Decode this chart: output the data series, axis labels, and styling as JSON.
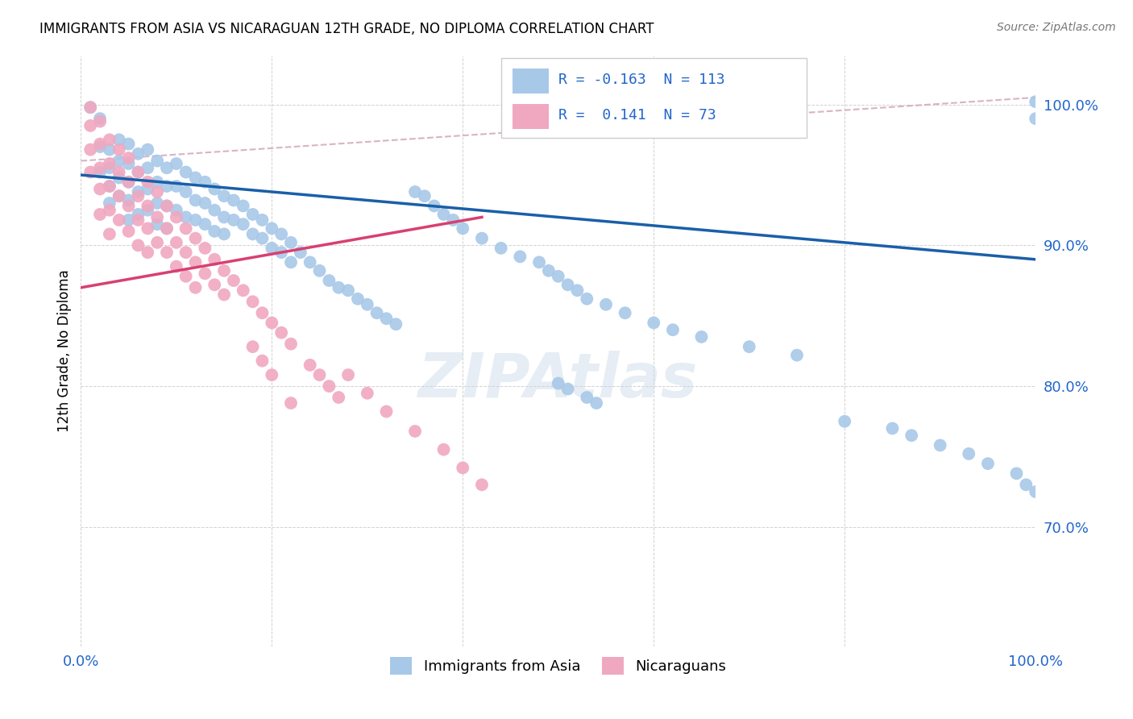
{
  "title": "IMMIGRANTS FROM ASIA VS NICARAGUAN 12TH GRADE, NO DIPLOMA CORRELATION CHART",
  "source": "Source: ZipAtlas.com",
  "ylabel": "12th Grade, No Diploma",
  "ytick_labels": [
    "70.0%",
    "80.0%",
    "90.0%",
    "100.0%"
  ],
  "ytick_values": [
    0.7,
    0.8,
    0.9,
    1.0
  ],
  "xlim": [
    0.0,
    1.0
  ],
  "ylim": [
    0.615,
    1.035
  ],
  "legend_blue_r": "-0.163",
  "legend_blue_n": "113",
  "legend_pink_r": "0.141",
  "legend_pink_n": "73",
  "legend_labels": [
    "Immigrants from Asia",
    "Nicaraguans"
  ],
  "blue_color": "#a8c8e8",
  "pink_color": "#f0a8c0",
  "blue_line_color": "#1a5fa8",
  "pink_line_color": "#d84070",
  "dashed_line_color": "#d0a0b8",
  "watermark": "ZIPAtlas",
  "blue_line_x0": 0.0,
  "blue_line_y0": 0.95,
  "blue_line_x1": 1.0,
  "blue_line_y1": 0.89,
  "pink_line_x0": 0.0,
  "pink_line_y0": 0.87,
  "pink_line_x1": 0.42,
  "pink_line_y1": 0.92,
  "dash_line_x0": 0.0,
  "dash_line_y0": 0.96,
  "dash_line_x1": 1.0,
  "dash_line_y1": 1.005,
  "blue_scatter_x": [
    0.01,
    0.02,
    0.02,
    0.02,
    0.03,
    0.03,
    0.03,
    0.03,
    0.04,
    0.04,
    0.04,
    0.04,
    0.05,
    0.05,
    0.05,
    0.05,
    0.05,
    0.06,
    0.06,
    0.06,
    0.06,
    0.07,
    0.07,
    0.07,
    0.07,
    0.08,
    0.08,
    0.08,
    0.08,
    0.09,
    0.09,
    0.09,
    0.09,
    0.1,
    0.1,
    0.1,
    0.11,
    0.11,
    0.11,
    0.12,
    0.12,
    0.12,
    0.13,
    0.13,
    0.13,
    0.14,
    0.14,
    0.14,
    0.15,
    0.15,
    0.15,
    0.16,
    0.16,
    0.17,
    0.17,
    0.18,
    0.18,
    0.19,
    0.19,
    0.2,
    0.2,
    0.21,
    0.21,
    0.22,
    0.22,
    0.23,
    0.24,
    0.25,
    0.26,
    0.27,
    0.28,
    0.29,
    0.3,
    0.31,
    0.32,
    0.33,
    0.35,
    0.36,
    0.37,
    0.38,
    0.39,
    0.4,
    0.42,
    0.44,
    0.46,
    0.48,
    0.49,
    0.5,
    0.51,
    0.52,
    0.53,
    0.55,
    0.57,
    0.6,
    0.62,
    0.65,
    0.7,
    0.75,
    0.8,
    0.85,
    0.87,
    0.9,
    0.93,
    0.95,
    0.98,
    0.99,
    1.0,
    1.0,
    1.0,
    0.5,
    0.51,
    0.53,
    0.54
  ],
  "blue_scatter_y": [
    0.998,
    0.99,
    0.97,
    0.952,
    0.968,
    0.955,
    0.942,
    0.93,
    0.975,
    0.96,
    0.948,
    0.935,
    0.972,
    0.958,
    0.945,
    0.932,
    0.918,
    0.965,
    0.952,
    0.938,
    0.922,
    0.968,
    0.955,
    0.94,
    0.925,
    0.96,
    0.945,
    0.93,
    0.915,
    0.955,
    0.942,
    0.928,
    0.912,
    0.958,
    0.942,
    0.925,
    0.952,
    0.938,
    0.92,
    0.948,
    0.932,
    0.918,
    0.945,
    0.93,
    0.915,
    0.94,
    0.925,
    0.91,
    0.935,
    0.92,
    0.908,
    0.932,
    0.918,
    0.928,
    0.915,
    0.922,
    0.908,
    0.918,
    0.905,
    0.912,
    0.898,
    0.908,
    0.895,
    0.902,
    0.888,
    0.895,
    0.888,
    0.882,
    0.875,
    0.87,
    0.868,
    0.862,
    0.858,
    0.852,
    0.848,
    0.844,
    0.938,
    0.935,
    0.928,
    0.922,
    0.918,
    0.912,
    0.905,
    0.898,
    0.892,
    0.888,
    0.882,
    0.878,
    0.872,
    0.868,
    0.862,
    0.858,
    0.852,
    0.845,
    0.84,
    0.835,
    0.828,
    0.822,
    0.775,
    0.77,
    0.765,
    0.758,
    0.752,
    0.745,
    0.738,
    0.73,
    0.725,
    0.99,
    1.002,
    0.802,
    0.798,
    0.792,
    0.788
  ],
  "pink_scatter_x": [
    0.01,
    0.01,
    0.01,
    0.01,
    0.02,
    0.02,
    0.02,
    0.02,
    0.02,
    0.03,
    0.03,
    0.03,
    0.03,
    0.03,
    0.04,
    0.04,
    0.04,
    0.04,
    0.05,
    0.05,
    0.05,
    0.05,
    0.06,
    0.06,
    0.06,
    0.06,
    0.07,
    0.07,
    0.07,
    0.07,
    0.08,
    0.08,
    0.08,
    0.09,
    0.09,
    0.09,
    0.1,
    0.1,
    0.1,
    0.11,
    0.11,
    0.11,
    0.12,
    0.12,
    0.12,
    0.13,
    0.13,
    0.14,
    0.14,
    0.15,
    0.15,
    0.16,
    0.17,
    0.18,
    0.19,
    0.2,
    0.21,
    0.22,
    0.24,
    0.25,
    0.26,
    0.27,
    0.28,
    0.3,
    0.32,
    0.35,
    0.38,
    0.4,
    0.42,
    0.18,
    0.19,
    0.2,
    0.22
  ],
  "pink_scatter_y": [
    0.998,
    0.985,
    0.968,
    0.952,
    0.988,
    0.972,
    0.955,
    0.94,
    0.922,
    0.975,
    0.958,
    0.942,
    0.925,
    0.908,
    0.968,
    0.952,
    0.935,
    0.918,
    0.962,
    0.945,
    0.928,
    0.91,
    0.952,
    0.935,
    0.918,
    0.9,
    0.945,
    0.928,
    0.912,
    0.895,
    0.938,
    0.92,
    0.902,
    0.928,
    0.912,
    0.895,
    0.92,
    0.902,
    0.885,
    0.912,
    0.895,
    0.878,
    0.905,
    0.888,
    0.87,
    0.898,
    0.88,
    0.89,
    0.872,
    0.882,
    0.865,
    0.875,
    0.868,
    0.86,
    0.852,
    0.845,
    0.838,
    0.83,
    0.815,
    0.808,
    0.8,
    0.792,
    0.808,
    0.795,
    0.782,
    0.768,
    0.755,
    0.742,
    0.73,
    0.828,
    0.818,
    0.808,
    0.788
  ]
}
